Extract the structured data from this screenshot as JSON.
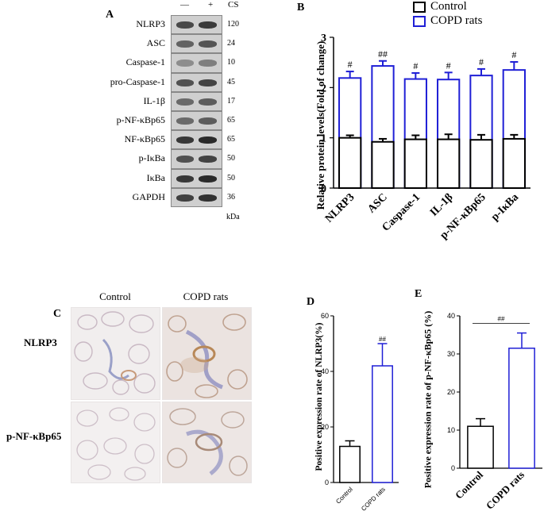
{
  "panel_a": {
    "letter": "A",
    "lane_headers": [
      "—",
      "+",
      "CS"
    ],
    "kda_unit": "kDa",
    "rows": [
      {
        "name": "NLRP3",
        "kda": "120"
      },
      {
        "name": "ASC",
        "kda": "24"
      },
      {
        "name": "Caspase-1",
        "kda": "10"
      },
      {
        "name": "pro-Caspase-1",
        "kda": "45"
      },
      {
        "name": "IL-1β",
        "kda": "17"
      },
      {
        "name": "p-NF-κBp65",
        "kda": "65"
      },
      {
        "name": "NF-κBp65",
        "kda": "65"
      },
      {
        "name": "p-IκBa",
        "kda": "50"
      },
      {
        "name": "IκBa",
        "kda": "50"
      },
      {
        "name": "GAPDH",
        "kda": "36"
      }
    ]
  },
  "panel_c": {
    "letter": "C",
    "columns": [
      "Control",
      "COPD rats"
    ],
    "rows": [
      "NLRP3",
      "p-NF-κBp65"
    ]
  },
  "colors": {
    "control": "#000000",
    "copd": "#1f1fd6"
  },
  "chart_data": [
    {
      "panel": "B",
      "type": "bar",
      "stacked_overlay": true,
      "ylabel": "Relative protein levels(Fold of change)",
      "ylim": [
        0,
        3
      ],
      "yticks": [
        0,
        1,
        2,
        3
      ],
      "categories": [
        "NLRP3",
        "ASC",
        "Caspase-1",
        "IL-1β",
        "p-NF-κBp65",
        "p-IκBa"
      ],
      "series": [
        {
          "name": "Control",
          "values": [
            1.0,
            0.92,
            0.97,
            0.97,
            0.96,
            0.98
          ],
          "errors": [
            0.05,
            0.06,
            0.08,
            0.1,
            0.1,
            0.08
          ]
        },
        {
          "name": "COPD rats",
          "values": [
            2.19,
            2.43,
            2.17,
            2.16,
            2.24,
            2.35
          ],
          "errors": [
            0.13,
            0.1,
            0.12,
            0.14,
            0.13,
            0.16
          ]
        }
      ],
      "annotations": [
        "#",
        "##",
        "#",
        "#",
        "#",
        "#"
      ],
      "legend_position": "top"
    },
    {
      "panel": "D",
      "type": "bar",
      "ylabel": "Positive expression rate of NLRP3(%)",
      "ylim": [
        0,
        60
      ],
      "yticks": [
        0,
        20,
        40,
        60
      ],
      "categories": [
        "Control",
        "COPD rats"
      ],
      "values": [
        13,
        42
      ],
      "errors": [
        2,
        8
      ],
      "annotation": "##"
    },
    {
      "panel": "E",
      "type": "bar",
      "ylabel": "Positive expression rate of p-NF-κBp65 (%)",
      "ylim": [
        0,
        40
      ],
      "yticks": [
        0,
        10,
        20,
        30,
        40
      ],
      "categories": [
        "Control",
        "COPD rats"
      ],
      "values": [
        11,
        31.5
      ],
      "errors": [
        2,
        4
      ],
      "annotation": "##"
    }
  ]
}
